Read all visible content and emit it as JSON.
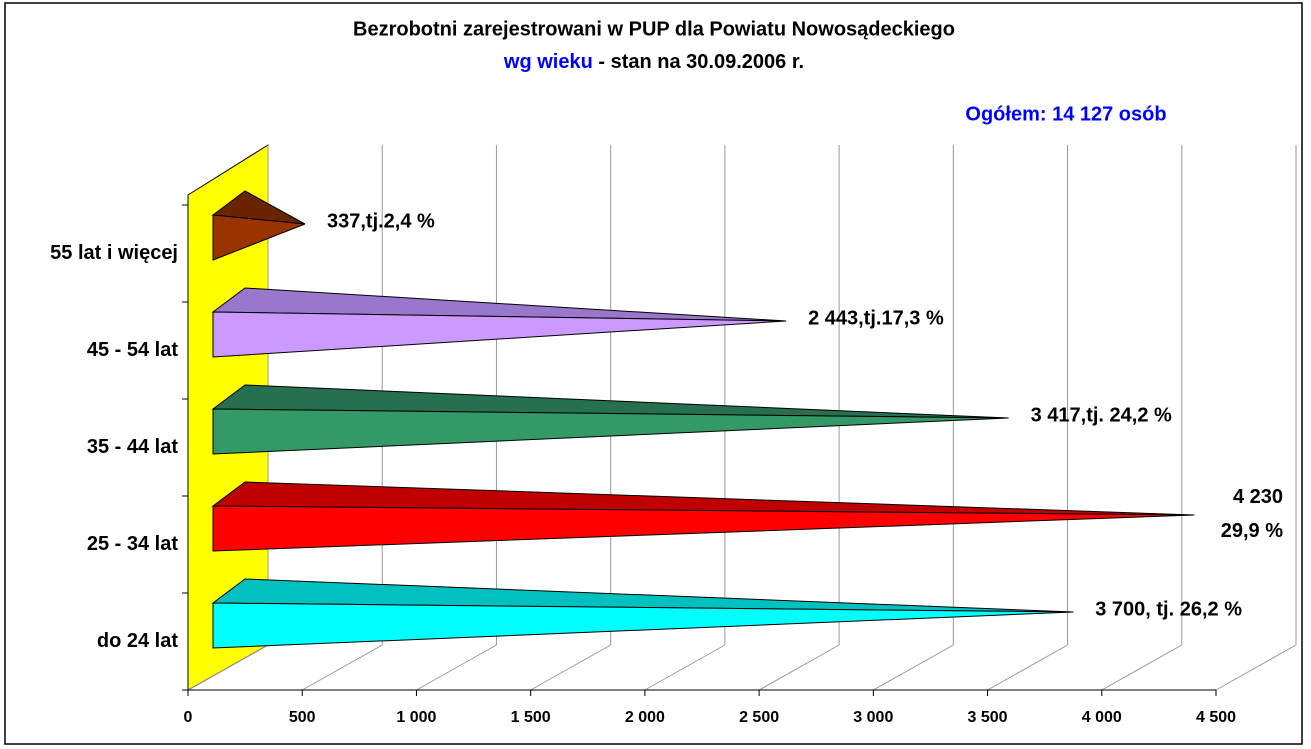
{
  "chart_data": {
    "type": "cone_bar_h",
    "title": "Bezrobotni zarejestrowani w PUP dla Powiatu Nowosądeckiego",
    "subtitle": [
      "wg wieku",
      " - stan na 30.09.2006 r."
    ],
    "annotation": "Ogółem: 14 127 osób",
    "categories": [
      "do 24 lat",
      "25 - 34 lat",
      "35 - 44 lat",
      "45 - 54 lat",
      "55 lat i więcej"
    ],
    "values": [
      3700,
      4230,
      3417,
      2443,
      337
    ],
    "value_labels": [
      "3 700, tj. 26,2 %",
      "4 230\n29,9 %",
      "3 417,tj. 24,2 %",
      "2 443,tj.17,3 %",
      "337,tj.2,4 %"
    ],
    "colors": [
      "#00ffff",
      "#ff0000",
      "#339966",
      "#cc99ff",
      "#993300"
    ],
    "top_colors": [
      "#00c0c0",
      "#c00000",
      "#267050",
      "#9977cc",
      "#6b2400"
    ],
    "wall_color": "#ffff00",
    "xlim": [
      0,
      4500
    ],
    "xticks": [
      0,
      500,
      {
        "value": 1000,
        "label": "1 000"
      },
      {
        "value": 1500,
        "label": "1 500"
      },
      {
        "value": 2000,
        "label": "2 000"
      },
      {
        "value": 2500,
        "label": "2 500"
      },
      {
        "value": 3000,
        "label": "3 000"
      },
      {
        "value": 3500,
        "label": "3 500"
      },
      {
        "value": 4000,
        "label": "4 000"
      },
      {
        "value": 4500,
        "label": "4 500"
      }
    ],
    "grid": true
  }
}
